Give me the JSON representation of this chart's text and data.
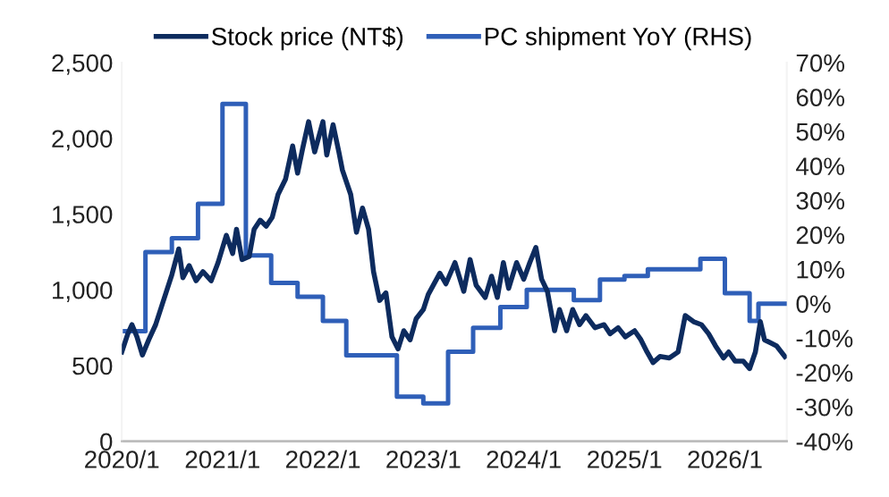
{
  "chart_data": {
    "type": "line",
    "series": [
      {
        "name": "Stock price (NT$)",
        "color": "#0d2b5e",
        "axis": "y",
        "x": [
          "2020-01-01",
          "2020-01-23",
          "2020-02-07",
          "2020-02-25",
          "2020-03-16",
          "2020-04-08",
          "2020-05-03",
          "2020-05-28",
          "2020-07-01",
          "2020-07-26",
          "2020-08-10",
          "2020-09-02",
          "2020-09-27",
          "2020-10-22",
          "2020-11-21",
          "2020-12-16",
          "2021-01-15",
          "2021-02-07",
          "2021-02-21",
          "2021-03-13",
          "2021-04-08",
          "2021-04-26",
          "2021-05-18",
          "2021-06-09",
          "2021-07-01",
          "2021-07-22",
          "2021-08-18",
          "2021-09-13",
          "2021-10-01",
          "2021-10-19",
          "2021-11-10",
          "2021-12-02",
          "2022-01-01",
          "2022-01-15",
          "2022-02-07",
          "2022-02-28",
          "2022-03-13",
          "2022-04-12",
          "2022-05-03",
          "2022-05-25",
          "2022-06-16",
          "2022-07-04",
          "2022-07-26",
          "2022-08-18",
          "2022-09-09",
          "2022-10-01",
          "2022-10-22",
          "2022-11-14",
          "2022-12-06",
          "2023-01-01",
          "2023-01-19",
          "2023-03-02",
          "2023-03-24",
          "2023-04-26",
          "2023-05-28",
          "2023-06-20",
          "2023-07-12",
          "2023-08-14",
          "2023-09-06",
          "2023-09-27",
          "2023-10-19",
          "2023-11-07",
          "2023-12-06",
          "2024-01-01",
          "2024-01-23",
          "2024-02-14",
          "2024-03-06",
          "2024-03-27",
          "2024-04-22",
          "2024-05-10",
          "2024-06-05",
          "2024-06-27",
          "2024-07-22",
          "2024-08-14",
          "2024-09-16",
          "2024-10-19",
          "2024-11-10",
          "2024-12-09",
          "2025-01-04",
          "2025-02-07",
          "2025-03-02",
          "2025-03-24",
          "2025-04-15",
          "2025-05-10",
          "2025-06-13",
          "2025-07-15",
          "2025-08-10",
          "2025-09-09",
          "2025-10-08",
          "2025-11-03",
          "2025-11-28",
          "2025-12-27",
          "2026-01-15",
          "2026-02-07",
          "2026-03-09",
          "2026-04-01",
          "2026-04-22",
          "2026-05-10",
          "2026-05-25",
          "2026-06-16",
          "2026-07-08",
          "2026-08-07"
        ],
        "values": [
          590,
          710,
          770,
          690,
          570,
          670,
          770,
          910,
          1100,
          1270,
          1080,
          1160,
          1060,
          1120,
          1060,
          1180,
          1360,
          1240,
          1400,
          1200,
          1220,
          1400,
          1460,
          1420,
          1480,
          1630,
          1730,
          1950,
          1770,
          1930,
          2110,
          1910,
          2110,
          1890,
          2090,
          1910,
          1790,
          1630,
          1380,
          1540,
          1400,
          1120,
          930,
          980,
          690,
          610,
          730,
          670,
          810,
          870,
          970,
          1110,
          1040,
          1180,
          990,
          1200,
          1030,
          950,
          1090,
          950,
          1180,
          1010,
          1180,
          1070,
          1180,
          1280,
          1070,
          990,
          730,
          870,
          730,
          870,
          770,
          830,
          750,
          770,
          710,
          750,
          690,
          730,
          670,
          590,
          520,
          560,
          550,
          590,
          830,
          790,
          770,
          710,
          630,
          550,
          590,
          530,
          530,
          480,
          590,
          790,
          670,
          650,
          630,
          560
        ]
      },
      {
        "name": "PC shipment YoY (RHS)",
        "color": "#2f5fb8",
        "type": "step",
        "axis": "y2",
        "x": [
          "2020-01-01",
          "2020-03-27",
          "2020-07-01",
          "2020-10-04",
          "2021-01-01",
          "2021-03-27",
          "2021-06-27",
          "2021-10-01",
          "2022-01-01",
          "2022-03-27",
          "2022-09-27",
          "2023-01-01",
          "2023-04-01",
          "2023-07-01",
          "2023-10-08",
          "2024-01-12",
          "2024-07-01",
          "2024-10-04",
          "2025-01-01",
          "2025-03-27",
          "2025-10-04",
          "2026-01-01",
          "2026-04-01",
          "2026-05-03",
          "2026-08-07"
        ],
        "values": [
          -8,
          15,
          19,
          29,
          58,
          14,
          6,
          2,
          -5,
          -15,
          -27,
          -29,
          -14,
          -7,
          -1,
          4,
          1,
          7,
          8,
          10,
          13,
          3,
          -5,
          0,
          0
        ]
      }
    ],
    "xlim": [
      "2020-01-01",
      "2026-08-14"
    ],
    "xticks": [
      {
        "value": "2020-01-01",
        "label": "2020/1"
      },
      {
        "value": "2021-01-01",
        "label": "2021/1"
      },
      {
        "value": "2022-01-01",
        "label": "2022/1"
      },
      {
        "value": "2023-01-01",
        "label": "2023/1"
      },
      {
        "value": "2024-01-01",
        "label": "2024/1"
      },
      {
        "value": "2025-01-01",
        "label": "2025/1"
      },
      {
        "value": "2026-01-01",
        "label": "2026/1"
      }
    ],
    "ylim": [
      0,
      2500
    ],
    "yticks": [
      0,
      500,
      {
        "value": 1000,
        "label": "1,000"
      },
      {
        "value": 1500,
        "label": "1,500"
      },
      {
        "value": 2000,
        "label": "2,000"
      },
      {
        "value": 2500,
        "label": "2,500"
      }
    ],
    "y2lim": [
      -40,
      70
    ],
    "y2ticks": [
      {
        "value": -40,
        "label": "-40%"
      },
      {
        "value": -30,
        "label": "-30%"
      },
      {
        "value": -20,
        "label": "-20%"
      },
      {
        "value": -10,
        "label": "-10%"
      },
      {
        "value": 0,
        "label": "0%"
      },
      {
        "value": 10,
        "label": "10%"
      },
      {
        "value": 20,
        "label": "20%"
      },
      {
        "value": 30,
        "label": "30%"
      },
      {
        "value": 40,
        "label": "40%"
      },
      {
        "value": 50,
        "label": "50%"
      },
      {
        "value": 60,
        "label": "60%"
      },
      {
        "value": 70,
        "label": "70%"
      }
    ],
    "legend": "top",
    "grid": false,
    "marker": "none",
    "line_style": "solid"
  }
}
